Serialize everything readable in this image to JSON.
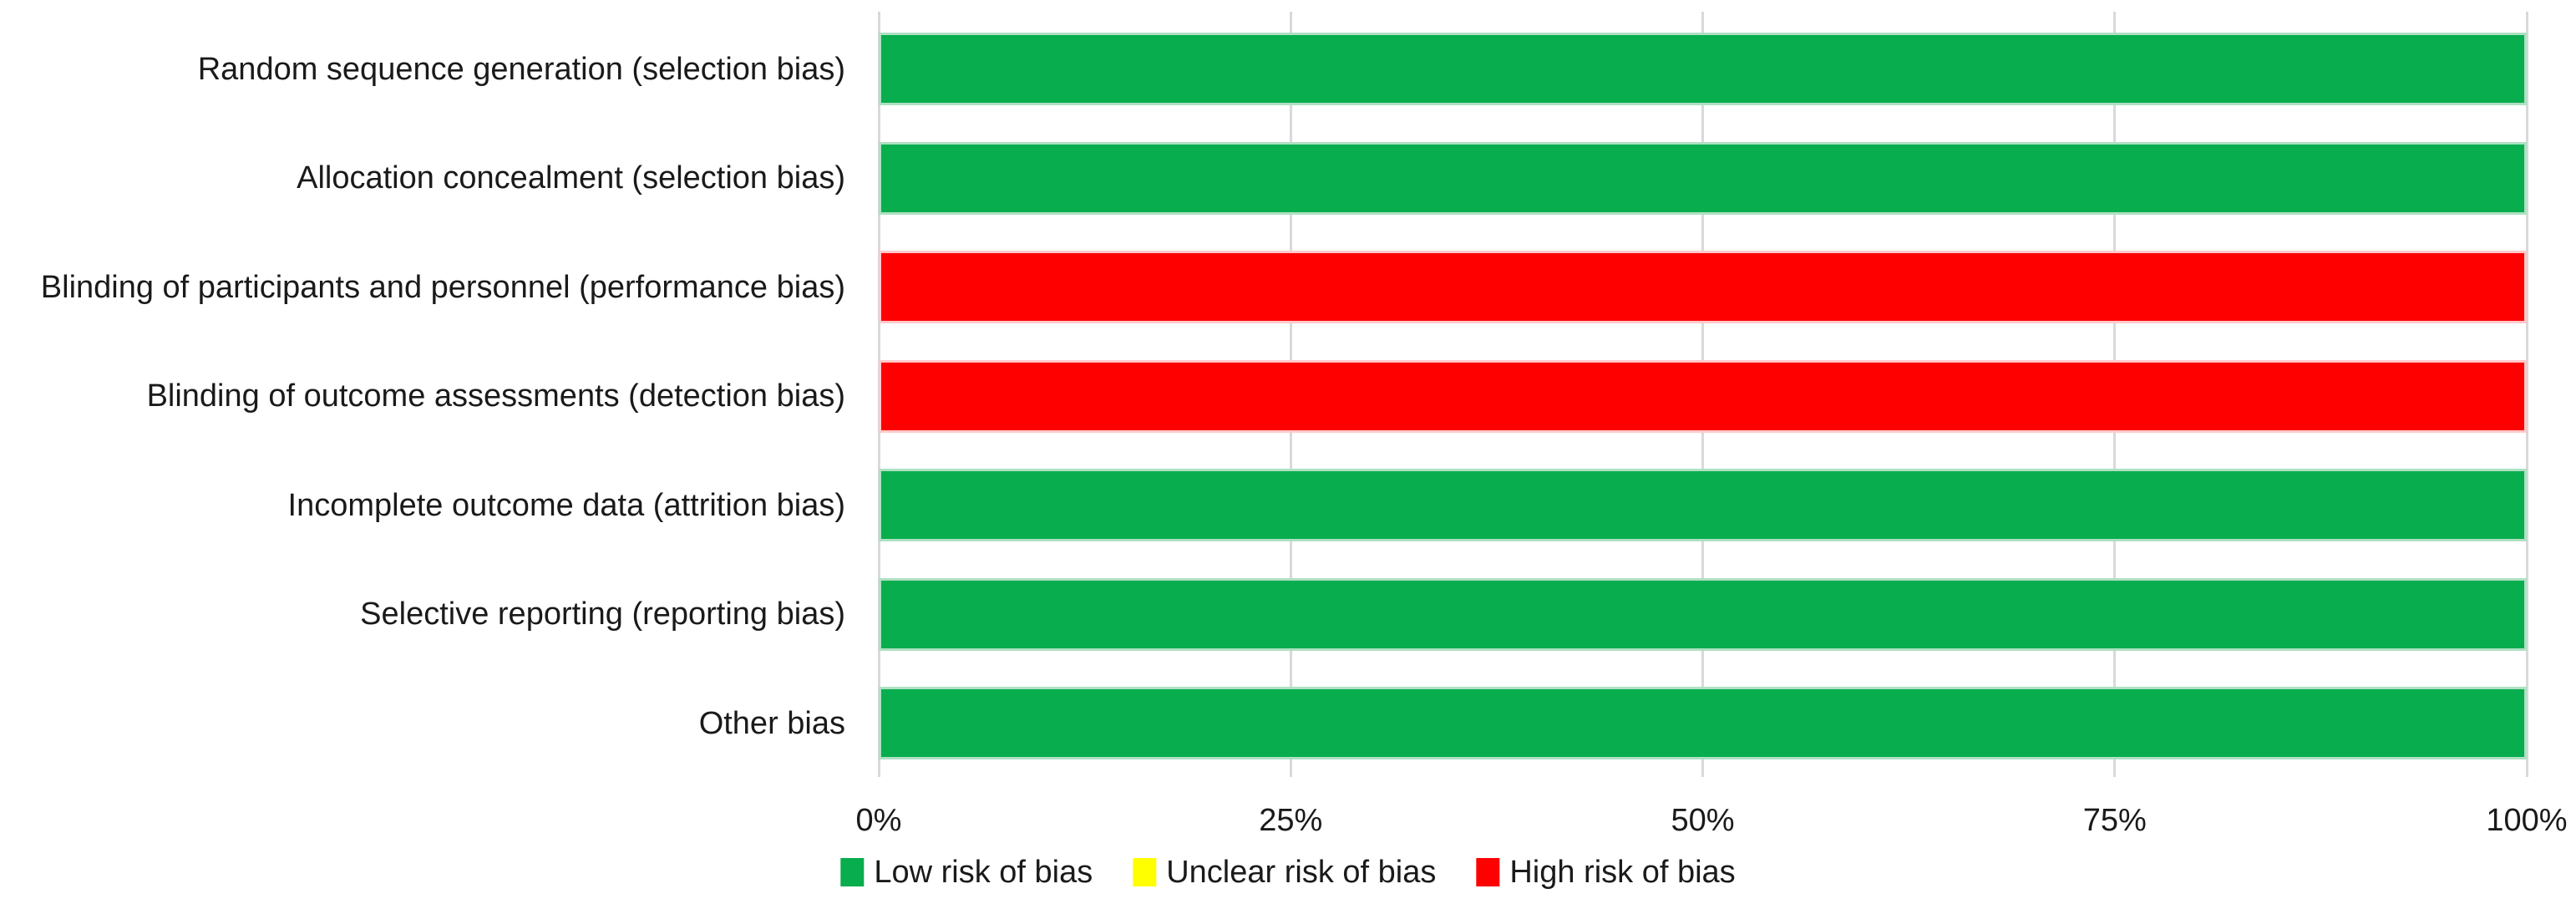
{
  "chart_data": {
    "type": "bar",
    "orientation": "horizontal",
    "stacked": true,
    "title": "",
    "xlabel": "",
    "ylabel": "",
    "xlim": [
      0,
      100
    ],
    "grid": true,
    "gridline_color": "#d9d9d9",
    "background_color": "#ffffff",
    "text_color": "#1a1a1a",
    "legend_position": "bottom-center",
    "categories": [
      "Random sequence generation (selection bias)",
      "Allocation concealment (selection bias)",
      "Blinding of participants and personnel (performance bias)",
      "Blinding of outcome assessments (detection bias)",
      "Incomplete outcome data (attrition bias)",
      "Selective reporting (reporting bias)",
      "Other bias"
    ],
    "x_ticks": [
      {
        "label": "0%",
        "value": 0
      },
      {
        "label": "25%",
        "value": 25
      },
      {
        "label": "50%",
        "value": 50
      },
      {
        "label": "75%",
        "value": 75
      },
      {
        "label": "100%",
        "value": 100
      }
    ],
    "series": [
      {
        "name": "Low risk of bias",
        "color": "#08ad4d",
        "border_color": "#aee0c3",
        "values": [
          100,
          100,
          0,
          0,
          100,
          100,
          100
        ]
      },
      {
        "name": "Unclear risk of bias",
        "color": "#ffff00",
        "border_color": "#fdf5b0",
        "values": [
          0,
          0,
          0,
          0,
          0,
          0,
          0
        ]
      },
      {
        "name": "High risk of bias",
        "color": "#fe0000",
        "border_color": "#fec9cb",
        "values": [
          0,
          0,
          100,
          100,
          0,
          0,
          0
        ]
      }
    ]
  }
}
